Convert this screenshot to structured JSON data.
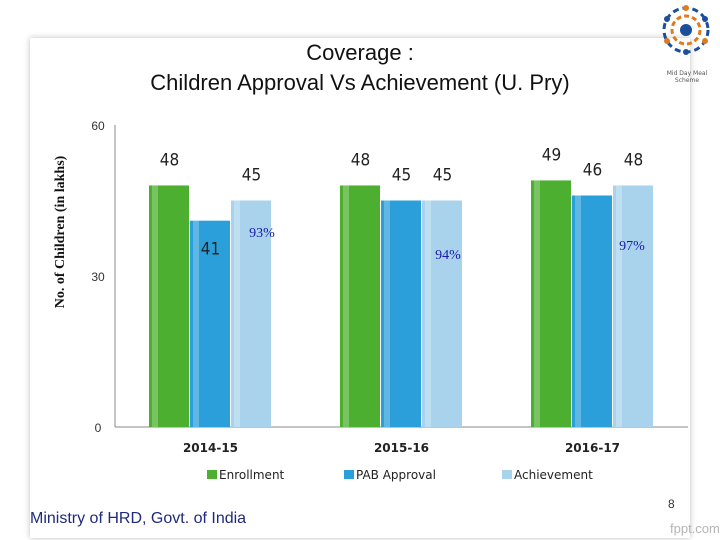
{
  "slide": {
    "title_line1": "Coverage :",
    "title_line2": "Children Approval Vs Achievement (U. Pry)",
    "logo_caption": "Mid Day Meal Scheme",
    "footer": "Ministry of HRD, Govt. of India",
    "page_number": "8",
    "watermark": "fppt.com"
  },
  "chart_data": {
    "type": "bar",
    "ylabel": "No. of Children (in lakhs)",
    "xlabel": "",
    "ylim": [
      0,
      60
    ],
    "yticks": [
      0,
      30,
      60
    ],
    "grid": false,
    "legend_position": "bottom",
    "categories": [
      "2014-15",
      "2015-16",
      "2016-17"
    ],
    "series": [
      {
        "name": "Enrollment",
        "values": [
          48,
          48,
          49
        ],
        "color": "#4caf2f"
      },
      {
        "name": "PAB Approval",
        "values": [
          41,
          45,
          46
        ],
        "color": "#2b9fd9"
      },
      {
        "name": "Achievement",
        "values": [
          45,
          45,
          48
        ],
        "color": "#a9d3ec"
      }
    ],
    "value_labels": [
      [
        "48",
        "41",
        "45"
      ],
      [
        "48",
        "45",
        "45"
      ],
      [
        "49",
        "46",
        "48"
      ]
    ],
    "annotations": [
      "93%",
      "94%",
      "97%"
    ]
  }
}
